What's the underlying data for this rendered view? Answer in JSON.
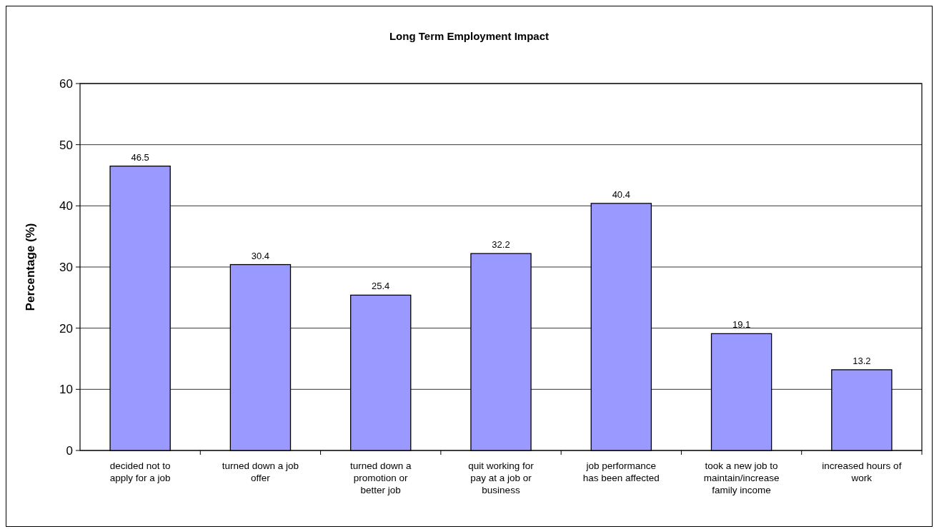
{
  "chart_data": {
    "type": "bar",
    "title": "Long Term Employment Impact",
    "ylabel": "Percentage (%)",
    "categories": [
      "decided not to apply for a job",
      "turned down a job offer",
      "turned down a promotion or better job",
      "quit working for pay at a job or business",
      "job performance has been affected",
      "took a new job to maintain/increase family income",
      "increased hours of work"
    ],
    "values": [
      46.5,
      30.4,
      25.4,
      32.2,
      40.4,
      19.1,
      13.2
    ],
    "color": "#9999ff",
    "ylim": [
      0,
      60
    ],
    "yticks": [
      0,
      10,
      20,
      30,
      40,
      50,
      60
    ],
    "grid": "y",
    "data_labels": true
  }
}
